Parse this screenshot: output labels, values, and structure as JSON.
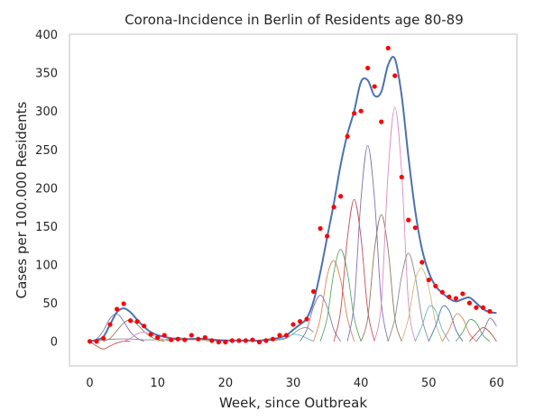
{
  "chart_data": {
    "type": "scatter",
    "title": "Corona-Incidence in Berlin of Residents age 80-89",
    "xlabel": "Week, since Outbreak",
    "ylabel": "Cases per 100.000 Residents",
    "xlim": [
      -3,
      63
    ],
    "ylim": [
      -32,
      400
    ],
    "x_ticks": [
      0,
      10,
      20,
      30,
      40,
      50,
      60
    ],
    "y_ticks": [
      0,
      50,
      100,
      150,
      200,
      250,
      300,
      350,
      400
    ],
    "grid": false,
    "observed_color": "#ff0000",
    "fit_color": "#4c72b0",
    "observed_points": {
      "x": [
        0,
        1,
        2,
        3,
        4,
        5,
        6,
        7,
        8,
        9,
        10,
        11,
        12,
        13,
        14,
        15,
        16,
        17,
        18,
        19,
        20,
        21,
        22,
        23,
        24,
        25,
        26,
        27,
        28,
        29,
        30,
        31,
        32,
        33,
        34,
        35,
        36,
        37,
        38,
        39,
        40,
        41,
        42,
        43,
        44,
        45,
        46,
        47,
        48,
        49,
        50,
        51,
        52,
        53,
        54,
        55,
        56,
        57,
        58,
        59
      ],
      "y": [
        0,
        0,
        4,
        22,
        42,
        49,
        27,
        26,
        20,
        9,
        5,
        8,
        2,
        3,
        2,
        8,
        3,
        5,
        1,
        -1,
        -1,
        1,
        1,
        1,
        2,
        -1,
        1,
        3,
        8,
        8,
        22,
        26,
        29,
        65,
        147,
        137,
        175,
        189,
        267,
        297,
        300,
        356,
        332,
        286,
        382,
        346,
        214,
        158,
        148,
        103,
        80,
        72,
        64,
        58,
        56,
        62,
        50,
        44,
        44,
        39
      ]
    },
    "fit": {
      "x": [
        0,
        1,
        2,
        3,
        4,
        5,
        6,
        7,
        8,
        9,
        10,
        11,
        12,
        13,
        14,
        15,
        16,
        17,
        18,
        19,
        20,
        21,
        22,
        23,
        24,
        25,
        26,
        27,
        28,
        29,
        30,
        31,
        32,
        33,
        34,
        35,
        36,
        37,
        38,
        39,
        40,
        41,
        42,
        43,
        44,
        45,
        46,
        47,
        48,
        49,
        50,
        51,
        52,
        53,
        54,
        55,
        56,
        57,
        58,
        59,
        60
      ],
      "y": [
        0,
        2,
        6,
        22,
        38,
        43,
        38,
        28,
        19,
        12,
        8,
        6,
        4,
        3,
        3,
        3,
        3,
        3,
        2,
        1,
        1,
        1,
        1,
        1,
        1,
        1,
        2,
        3,
        5,
        8,
        15,
        22,
        30,
        52,
        90,
        135,
        180,
        230,
        270,
        300,
        338,
        340,
        320,
        325,
        360,
        368,
        320,
        240,
        170,
        120,
        90,
        72,
        63,
        56,
        52,
        55,
        57,
        50,
        42,
        38,
        37
      ]
    },
    "components": [
      {
        "color": "#c44e52",
        "x": [
          0,
          1,
          2,
          3,
          4,
          5,
          6
        ],
        "y": [
          0,
          -6,
          -10,
          -6,
          -2,
          0,
          0
        ]
      },
      {
        "color": "#8172b3",
        "x": [
          0,
          1,
          2,
          3,
          4,
          5,
          6,
          7,
          8
        ],
        "y": [
          0,
          3,
          14,
          30,
          36,
          26,
          12,
          4,
          0
        ]
      },
      {
        "color": "#937860",
        "x": [
          2,
          3,
          4,
          5,
          6,
          7,
          8,
          9,
          10,
          11
        ],
        "y": [
          0,
          4,
          14,
          24,
          28,
          22,
          13,
          6,
          2,
          0
        ]
      },
      {
        "color": "#da8bc3",
        "x": [
          5,
          6,
          7,
          8,
          9,
          10,
          11,
          12
        ],
        "y": [
          0,
          4,
          10,
          12,
          9,
          5,
          2,
          0
        ]
      },
      {
        "color": "#8c8c8c",
        "x": [
          0,
          2,
          4,
          6,
          8,
          10,
          12,
          14,
          16,
          18,
          20,
          22,
          24,
          26,
          28,
          29,
          30,
          31,
          32,
          33
        ],
        "y": [
          0,
          2,
          3,
          3,
          2,
          2,
          2,
          3,
          4,
          3,
          2,
          1,
          1,
          1,
          2,
          4,
          10,
          16,
          18,
          12
        ]
      },
      {
        "color": "#ccb974",
        "x": [
          10,
          11,
          12,
          13,
          14,
          15,
          16,
          17,
          18
        ],
        "y": [
          0,
          2,
          4,
          5,
          4,
          3,
          2,
          1,
          0
        ]
      },
      {
        "color": "#64b5cd",
        "x": [
          25,
          26,
          27,
          28,
          29,
          30,
          31,
          32,
          33
        ],
        "y": [
          0,
          1,
          2,
          3,
          5,
          9,
          8,
          4,
          0
        ]
      },
      {
        "color": "#8172b3",
        "x": [
          31,
          32,
          33,
          34,
          35,
          36,
          37
        ],
        "y": [
          0,
          15,
          45,
          60,
          45,
          15,
          0
        ]
      },
      {
        "color": "#dd8452",
        "x": [
          33,
          34,
          35,
          36,
          37,
          38,
          39
        ],
        "y": [
          0,
          30,
          85,
          105,
          80,
          30,
          0
        ]
      },
      {
        "color": "#55a868",
        "x": [
          34,
          35,
          36,
          37,
          38,
          39,
          40
        ],
        "y": [
          0,
          30,
          90,
          120,
          90,
          30,
          0
        ]
      },
      {
        "color": "#c44e52",
        "x": [
          36,
          37,
          38,
          39,
          40,
          41,
          42
        ],
        "y": [
          0,
          40,
          135,
          185,
          135,
          40,
          0
        ]
      },
      {
        "color": "#8172b3",
        "x": [
          38,
          39,
          40,
          41,
          42,
          43,
          44
        ],
        "y": [
          0,
          50,
          185,
          255,
          185,
          50,
          0
        ]
      },
      {
        "color": "#937860",
        "x": [
          40,
          41,
          42,
          43,
          44,
          45,
          46
        ],
        "y": [
          0,
          30,
          120,
          165,
          120,
          30,
          0
        ]
      },
      {
        "color": "#da8bc3",
        "x": [
          42,
          43,
          44,
          45,
          46,
          47,
          48
        ],
        "y": [
          0,
          50,
          220,
          305,
          220,
          50,
          0
        ]
      },
      {
        "color": "#8c8c8c",
        "x": [
          44,
          45,
          46,
          47,
          48,
          49,
          50
        ],
        "y": [
          0,
          30,
          85,
          115,
          85,
          30,
          0
        ]
      },
      {
        "color": "#ccb974",
        "x": [
          46,
          47,
          48,
          49,
          50,
          51,
          52
        ],
        "y": [
          0,
          30,
          80,
          95,
          70,
          25,
          0
        ]
      },
      {
        "color": "#64b5cd",
        "x": [
          48,
          49,
          50,
          51,
          52,
          53
        ],
        "y": [
          0,
          20,
          45,
          40,
          15,
          0
        ]
      },
      {
        "color": "#4c72b0",
        "x": [
          50,
          51,
          52,
          53,
          54,
          55
        ],
        "y": [
          0,
          20,
          45,
          40,
          15,
          0
        ]
      },
      {
        "color": "#dd8452",
        "x": [
          52,
          53,
          54,
          55,
          56,
          57
        ],
        "y": [
          0,
          15,
          35,
          30,
          10,
          0
        ]
      },
      {
        "color": "#55a868",
        "x": [
          54,
          55,
          56,
          57,
          58,
          59
        ],
        "y": [
          0,
          12,
          28,
          24,
          8,
          0
        ]
      },
      {
        "color": "#c44e52",
        "x": [
          56,
          57,
          58,
          59,
          60
        ],
        "y": [
          0,
          10,
          18,
          12,
          0
        ]
      },
      {
        "color": "#8172b3",
        "x": [
          57,
          58,
          59,
          60
        ],
        "y": [
          0,
          12,
          30,
          20
        ]
      }
    ]
  }
}
